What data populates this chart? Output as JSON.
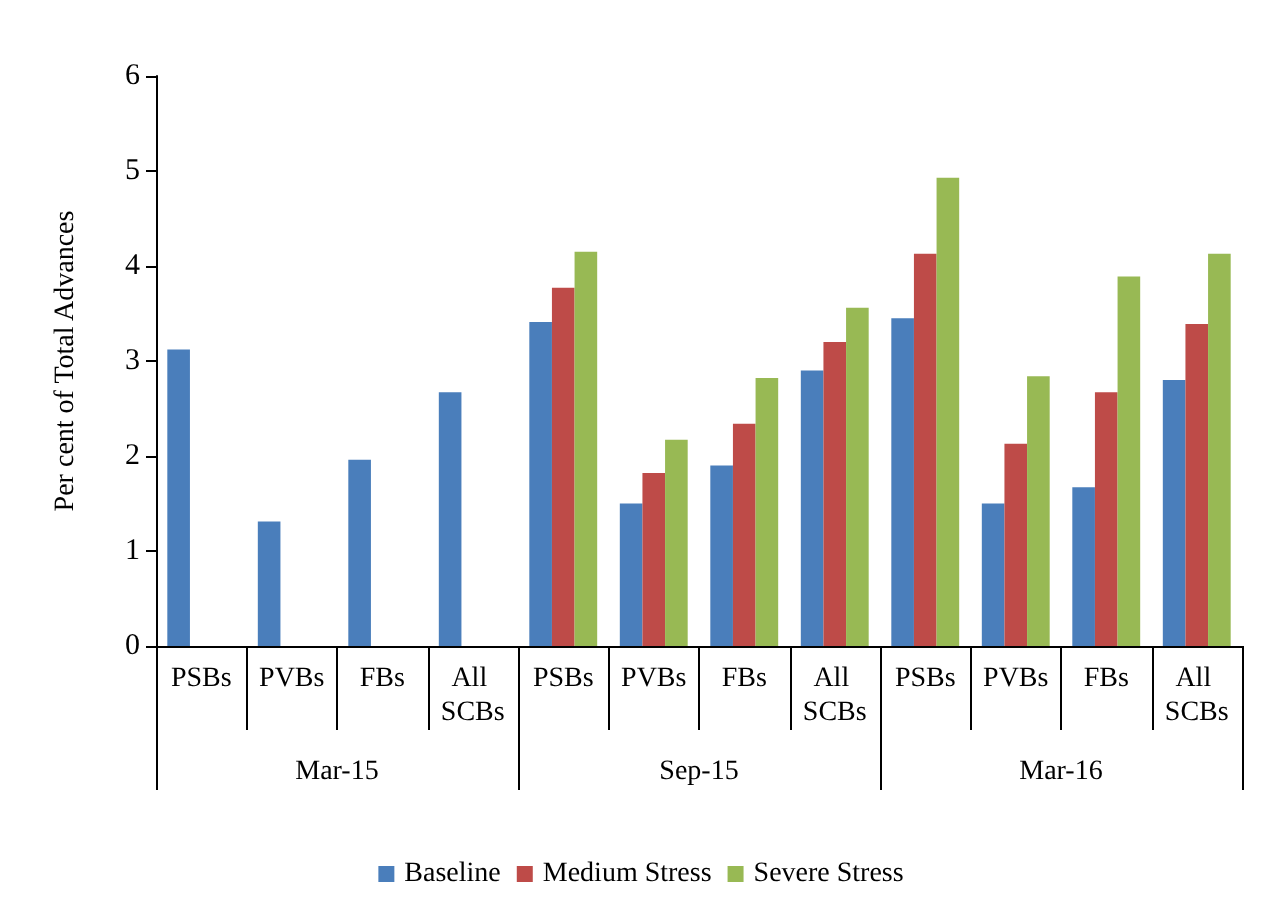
{
  "chart_data": {
    "type": "bar",
    "ylabel": "Per cent of Total Advances",
    "categories": [
      "PSBs",
      "PVBs",
      "FBs",
      "All SCBs",
      "PSBs",
      "PVBs",
      "FBs",
      "All SCBs",
      "PSBs",
      "PVBs",
      "FBs",
      "All SCBs"
    ],
    "annotations": [
      "Mar-15",
      "Sep-15",
      "Mar-16"
    ],
    "series": [
      {
        "name": "Baseline",
        "color": "#4a7ebb",
        "values": [
          3.12,
          1.31,
          1.96,
          2.67,
          3.41,
          1.5,
          1.9,
          2.9,
          3.45,
          1.5,
          1.67,
          2.8
        ]
      },
      {
        "name": "Medium Stress",
        "color": "#be4b48",
        "values": [
          null,
          null,
          null,
          null,
          3.77,
          1.82,
          2.34,
          3.2,
          4.13,
          2.13,
          2.67,
          3.39
        ]
      },
      {
        "name": "Severe Stress",
        "color": "#98b954",
        "values": [
          null,
          null,
          null,
          null,
          4.15,
          2.17,
          2.82,
          3.56,
          4.93,
          2.84,
          3.89,
          4.13
        ]
      }
    ],
    "ylim": [
      0,
      6
    ],
    "yticks": [
      0,
      1,
      2,
      3,
      4,
      5,
      6
    ],
    "grid": false,
    "legend": "bottom"
  }
}
